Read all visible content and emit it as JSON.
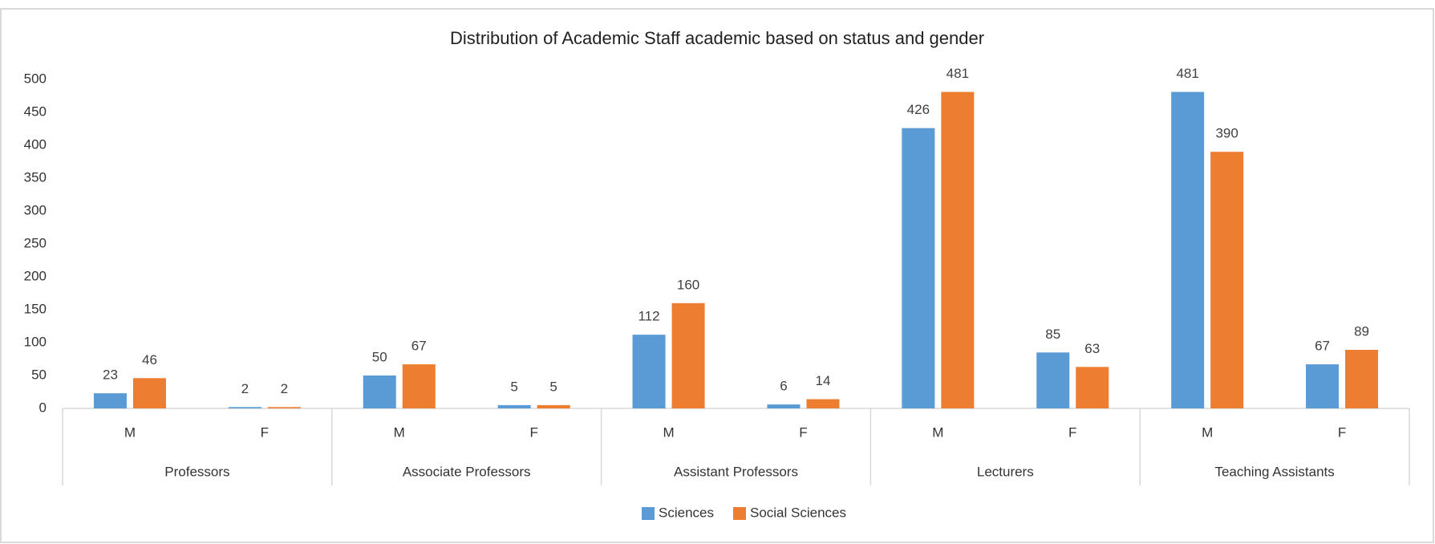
{
  "chart_data": {
    "type": "bar",
    "title": "Distribution of Academic Staff academic based on status and gender",
    "categories": [
      "M",
      "F",
      "M",
      "F",
      "M",
      "F",
      "M",
      "F",
      "M",
      "F"
    ],
    "groups": [
      "Professors",
      "Associate Professors",
      "Assistant Professors",
      "Lecturers",
      "Teaching Assistants"
    ],
    "series": [
      {
        "name": "Sciences",
        "color": "#5b9bd5",
        "values": [
          23,
          2,
          50,
          5,
          112,
          6,
          426,
          85,
          481,
          67
        ]
      },
      {
        "name": "Social Sciences",
        "color": "#ed7d31",
        "values": [
          46,
          2,
          67,
          5,
          160,
          14,
          481,
          63,
          390,
          89
        ]
      }
    ],
    "ylim": [
      0,
      500
    ],
    "yticks": [
      0,
      50,
      100,
      150,
      200,
      250,
      300,
      350,
      400,
      450,
      500
    ],
    "legend": "bottom"
  }
}
